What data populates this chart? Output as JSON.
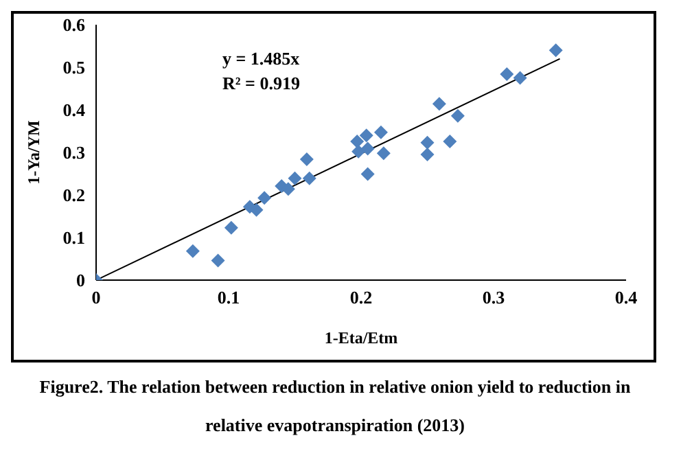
{
  "chart_data": {
    "type": "scatter",
    "title": "Figure2. The relation between reduction in relative onion yield to reduction in relative evapotranspiration (2013)",
    "xlabel": "1-Eta/Etm",
    "ylabel": "1-Ya/YM",
    "x": [
      0,
      0.073,
      0.092,
      0.102,
      0.116,
      0.121,
      0.127,
      0.14,
      0.145,
      0.15,
      0.159,
      0.161,
      0.197,
      0.198,
      0.204,
      0.205,
      0.205,
      0.215,
      0.217,
      0.25,
      0.25,
      0.259,
      0.267,
      0.273,
      0.31,
      0.32,
      0.347
    ],
    "series": [
      {
        "color": "#4f81bd",
        "values": [
          0,
          0.068,
          0.046,
          0.123,
          0.172,
          0.165,
          0.193,
          0.221,
          0.214,
          0.239,
          0.284,
          0.239,
          0.326,
          0.302,
          0.34,
          0.309,
          0.249,
          0.347,
          0.298,
          0.323,
          0.295,
          0.414,
          0.326,
          0.386,
          0.484,
          0.475,
          0.54
        ],
        "marker": "diamond"
      },
      {
        "type": "line",
        "color": "#000000",
        "x": [
          0,
          0.35
        ],
        "values": [
          0,
          0.52
        ],
        "marker": "none"
      }
    ],
    "annotations": [
      "y = 1.485x",
      "R² = 0.919"
    ],
    "xlim": [
      0,
      0.4
    ],
    "xticks": [
      0,
      0.1,
      0.2,
      0.3,
      0.4
    ],
    "ylim": [
      0,
      0.6
    ],
    "yticks": [
      0,
      0.1,
      0.2,
      0.3,
      0.4,
      0.5,
      0.6
    ],
    "grid": false,
    "legend": false
  }
}
